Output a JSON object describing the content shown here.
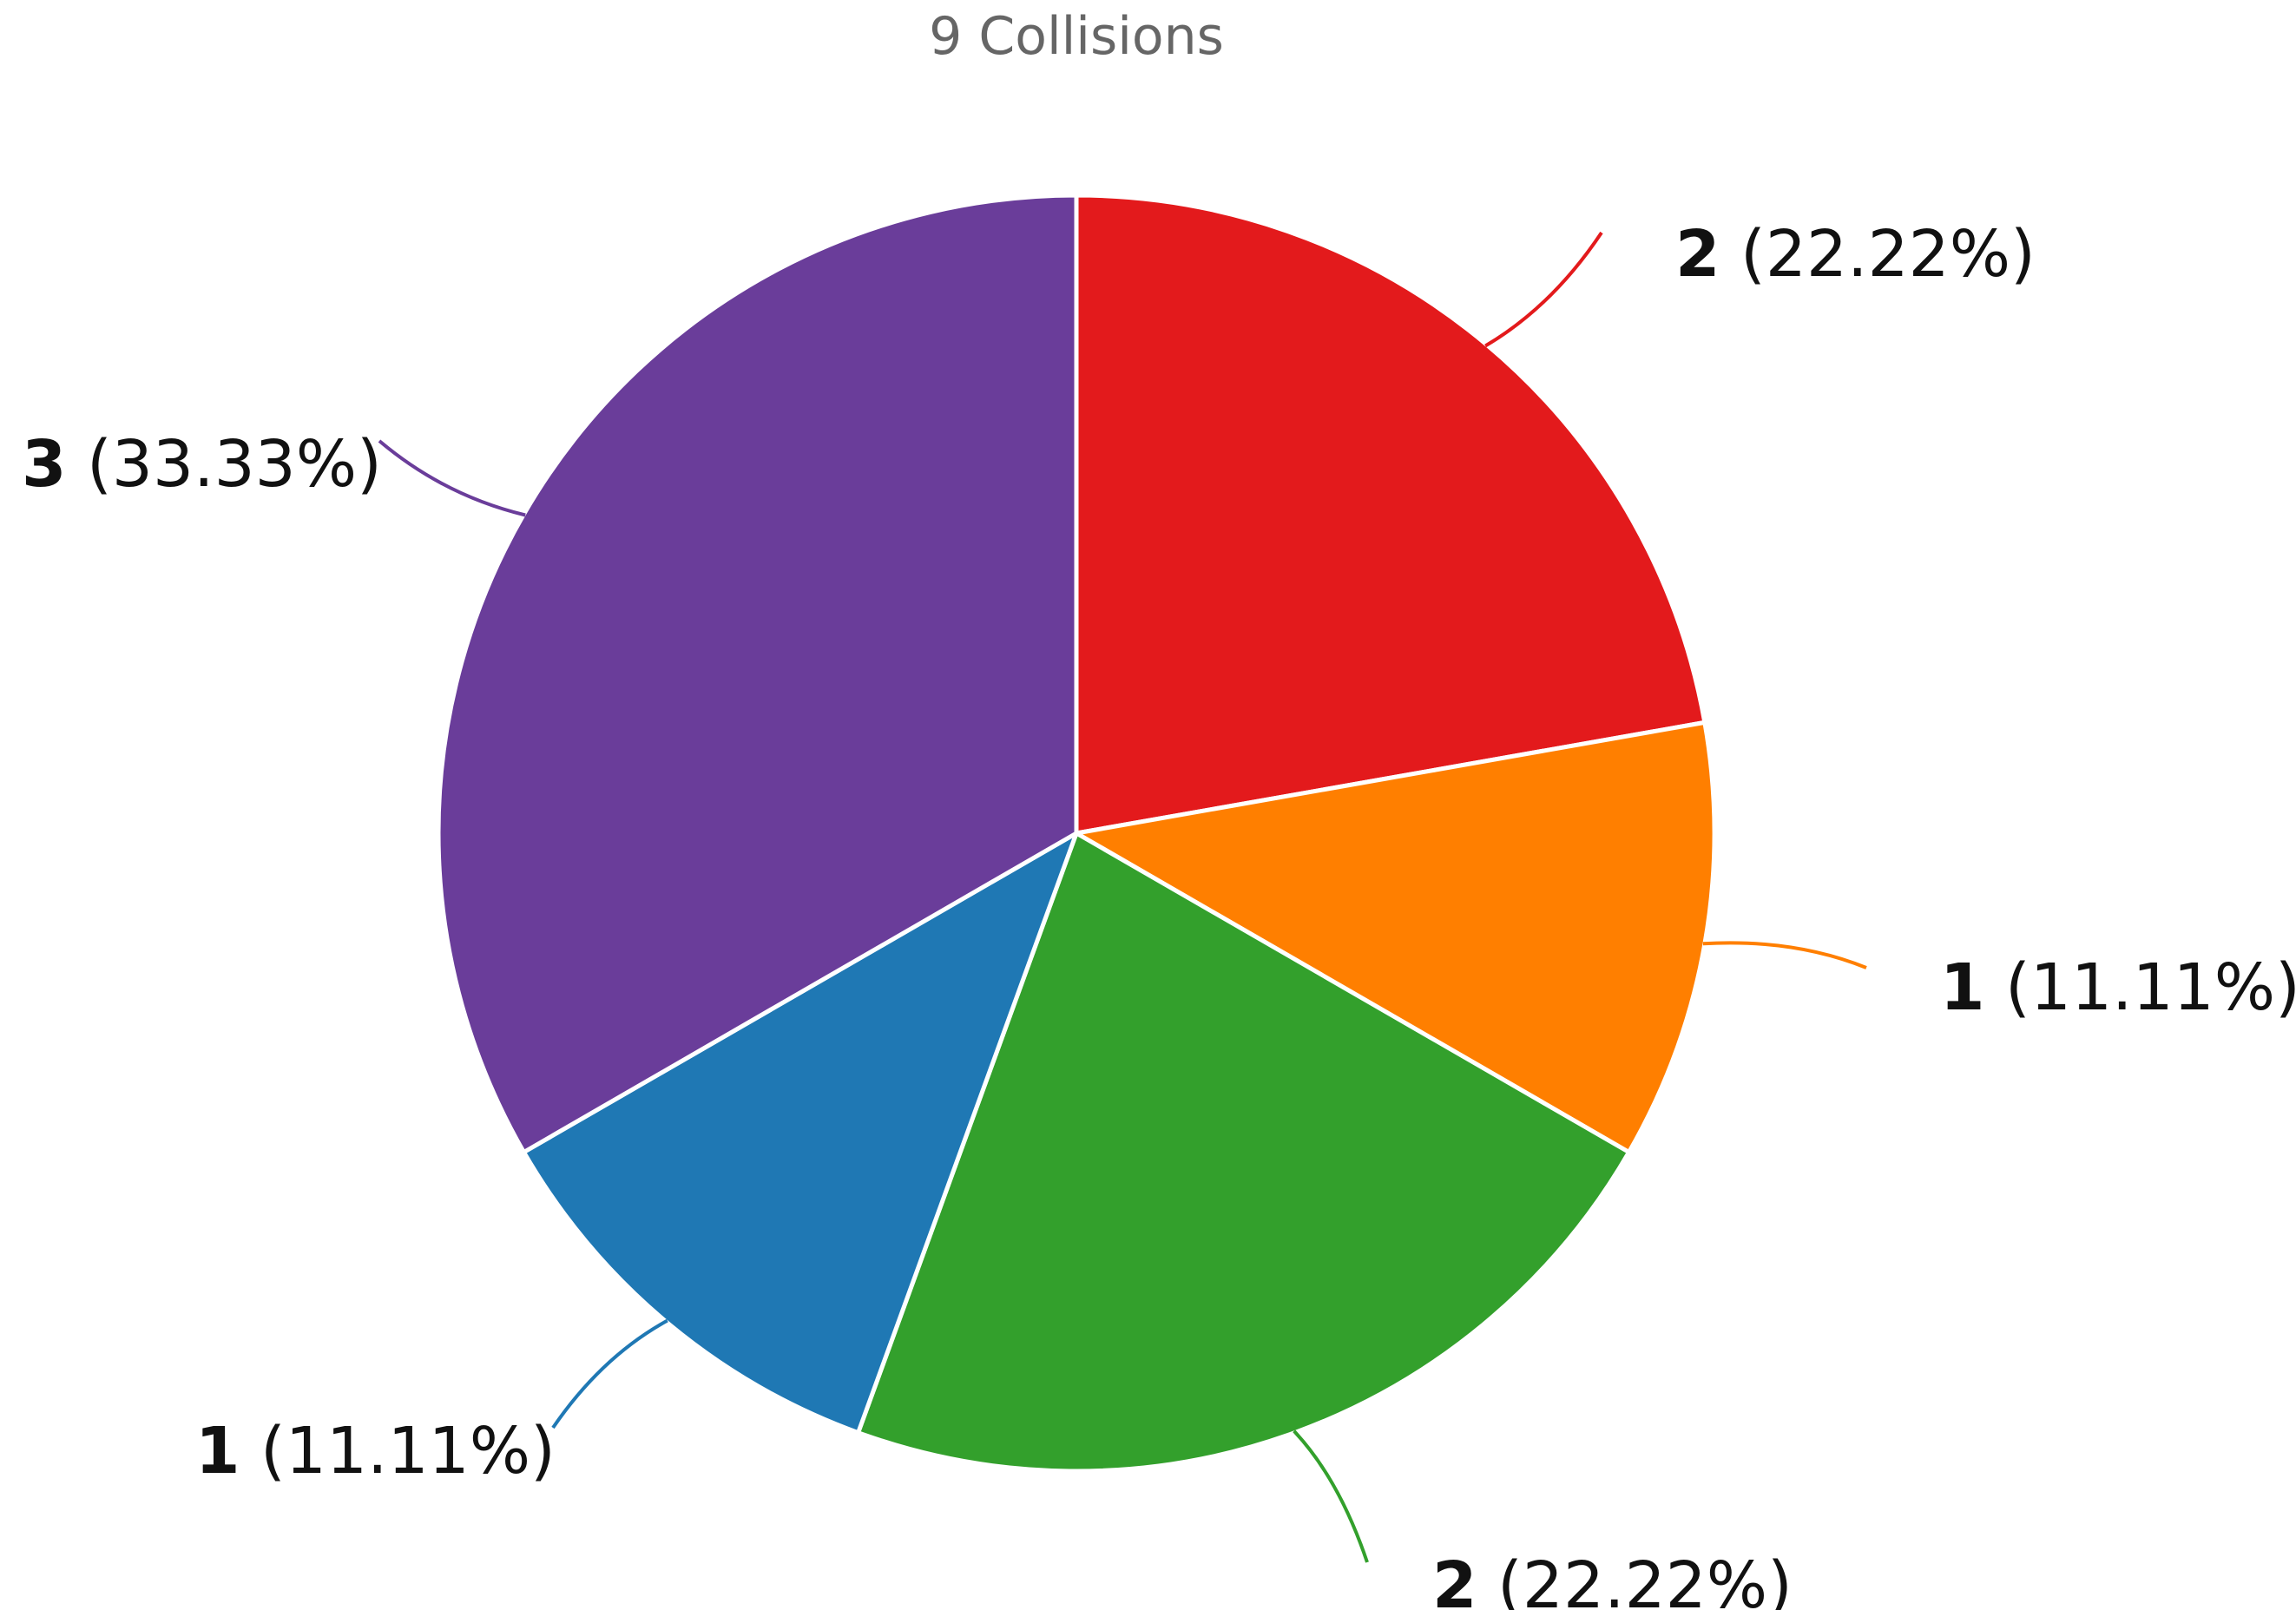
{
  "chart_data": {
    "type": "pie",
    "title": "9 Collisions",
    "start_angle_deg": 0,
    "direction": "clockwise",
    "slices": [
      {
        "value": 2,
        "percent": "22.22%",
        "label_value": "2",
        "label_percent": "(22.22%)",
        "color": "#e31a1c"
      },
      {
        "value": 1,
        "percent": "11.11%",
        "label_value": "1",
        "label_percent": "(11.11%)",
        "color": "#ff7f00"
      },
      {
        "value": 2,
        "percent": "22.22%",
        "label_value": "2",
        "label_percent": "(22.22%)",
        "color": "#33a02c"
      },
      {
        "value": 1,
        "percent": "11.11%",
        "label_value": "1",
        "label_percent": "(11.11%)",
        "color": "#1f78b4"
      },
      {
        "value": 3,
        "percent": "33.33%",
        "label_value": "3",
        "label_percent": "(33.33%)",
        "color": "#6a3d9a"
      }
    ]
  }
}
